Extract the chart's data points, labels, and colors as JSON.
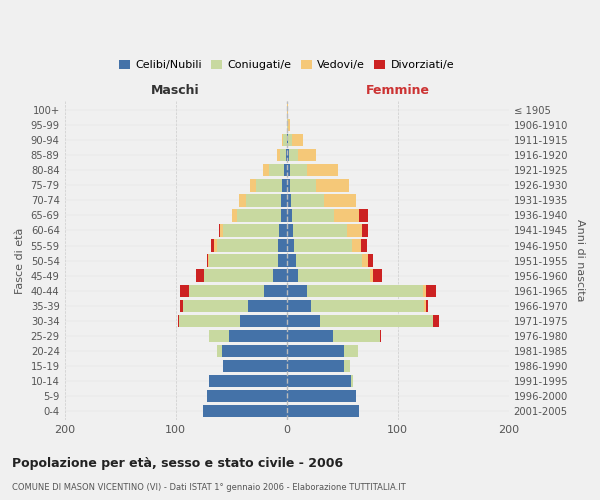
{
  "age_groups": [
    "0-4",
    "5-9",
    "10-14",
    "15-19",
    "20-24",
    "25-29",
    "30-34",
    "35-39",
    "40-44",
    "45-49",
    "50-54",
    "55-59",
    "60-64",
    "65-69",
    "70-74",
    "75-79",
    "80-84",
    "85-89",
    "90-94",
    "95-99",
    "100+"
  ],
  "birth_years": [
    "2001-2005",
    "1996-2000",
    "1991-1995",
    "1986-1990",
    "1981-1985",
    "1976-1980",
    "1971-1975",
    "1966-1970",
    "1961-1965",
    "1956-1960",
    "1951-1955",
    "1946-1950",
    "1941-1945",
    "1936-1940",
    "1931-1935",
    "1926-1930",
    "1921-1925",
    "1916-1920",
    "1911-1915",
    "1906-1910",
    "≤ 1905"
  ],
  "colors": {
    "celibi": "#4472a8",
    "coniugati": "#c8d9a0",
    "vedovi": "#f5c878",
    "divorziati": "#cc2222"
  },
  "males": {
    "celibi": [
      75,
      72,
      70,
      57,
      58,
      52,
      42,
      35,
      20,
      12,
      8,
      8,
      7,
      5,
      5,
      4,
      2,
      1,
      0,
      0,
      0
    ],
    "coniugati": [
      0,
      0,
      0,
      0,
      5,
      18,
      55,
      58,
      68,
      62,
      62,
      55,
      50,
      40,
      32,
      24,
      14,
      5,
      3,
      0,
      0
    ],
    "vedovi": [
      0,
      0,
      0,
      0,
      0,
      0,
      0,
      0,
      0,
      0,
      1,
      2,
      3,
      4,
      6,
      5,
      5,
      3,
      1,
      0,
      0
    ],
    "divorziati": [
      0,
      0,
      0,
      0,
      0,
      0,
      1,
      3,
      8,
      8,
      1,
      3,
      1,
      0,
      0,
      0,
      0,
      0,
      0,
      0,
      0
    ]
  },
  "females": {
    "celibi": [
      65,
      62,
      58,
      52,
      52,
      42,
      30,
      22,
      18,
      10,
      8,
      7,
      6,
      5,
      4,
      3,
      3,
      2,
      1,
      0,
      0
    ],
    "coniugati": [
      0,
      0,
      2,
      5,
      12,
      42,
      102,
      102,
      105,
      65,
      60,
      52,
      48,
      38,
      30,
      23,
      15,
      8,
      4,
      1,
      0
    ],
    "vedovi": [
      0,
      0,
      0,
      0,
      0,
      0,
      0,
      1,
      2,
      3,
      5,
      8,
      14,
      22,
      28,
      30,
      28,
      16,
      10,
      2,
      1
    ],
    "divorziati": [
      0,
      0,
      0,
      0,
      0,
      1,
      5,
      2,
      9,
      8,
      5,
      5,
      5,
      8,
      0,
      0,
      0,
      0,
      0,
      0,
      0
    ]
  },
  "title": "Popolazione per età, sesso e stato civile - 2006",
  "subtitle": "COMUNE DI MASON VICENTINO (VI) - Dati ISTAT 1° gennaio 2006 - Elaborazione TUTTITALIA.IT",
  "xlabel_left": "Maschi",
  "xlabel_right": "Femmine",
  "ylabel_left": "Fasce di età",
  "ylabel_right": "Anni di nascita",
  "xlim": 200,
  "legend_labels": [
    "Celibi/Nubili",
    "Coniugati/e",
    "Vedovi/e",
    "Divorziati/e"
  ],
  "bg_color": "#f0f0f0"
}
